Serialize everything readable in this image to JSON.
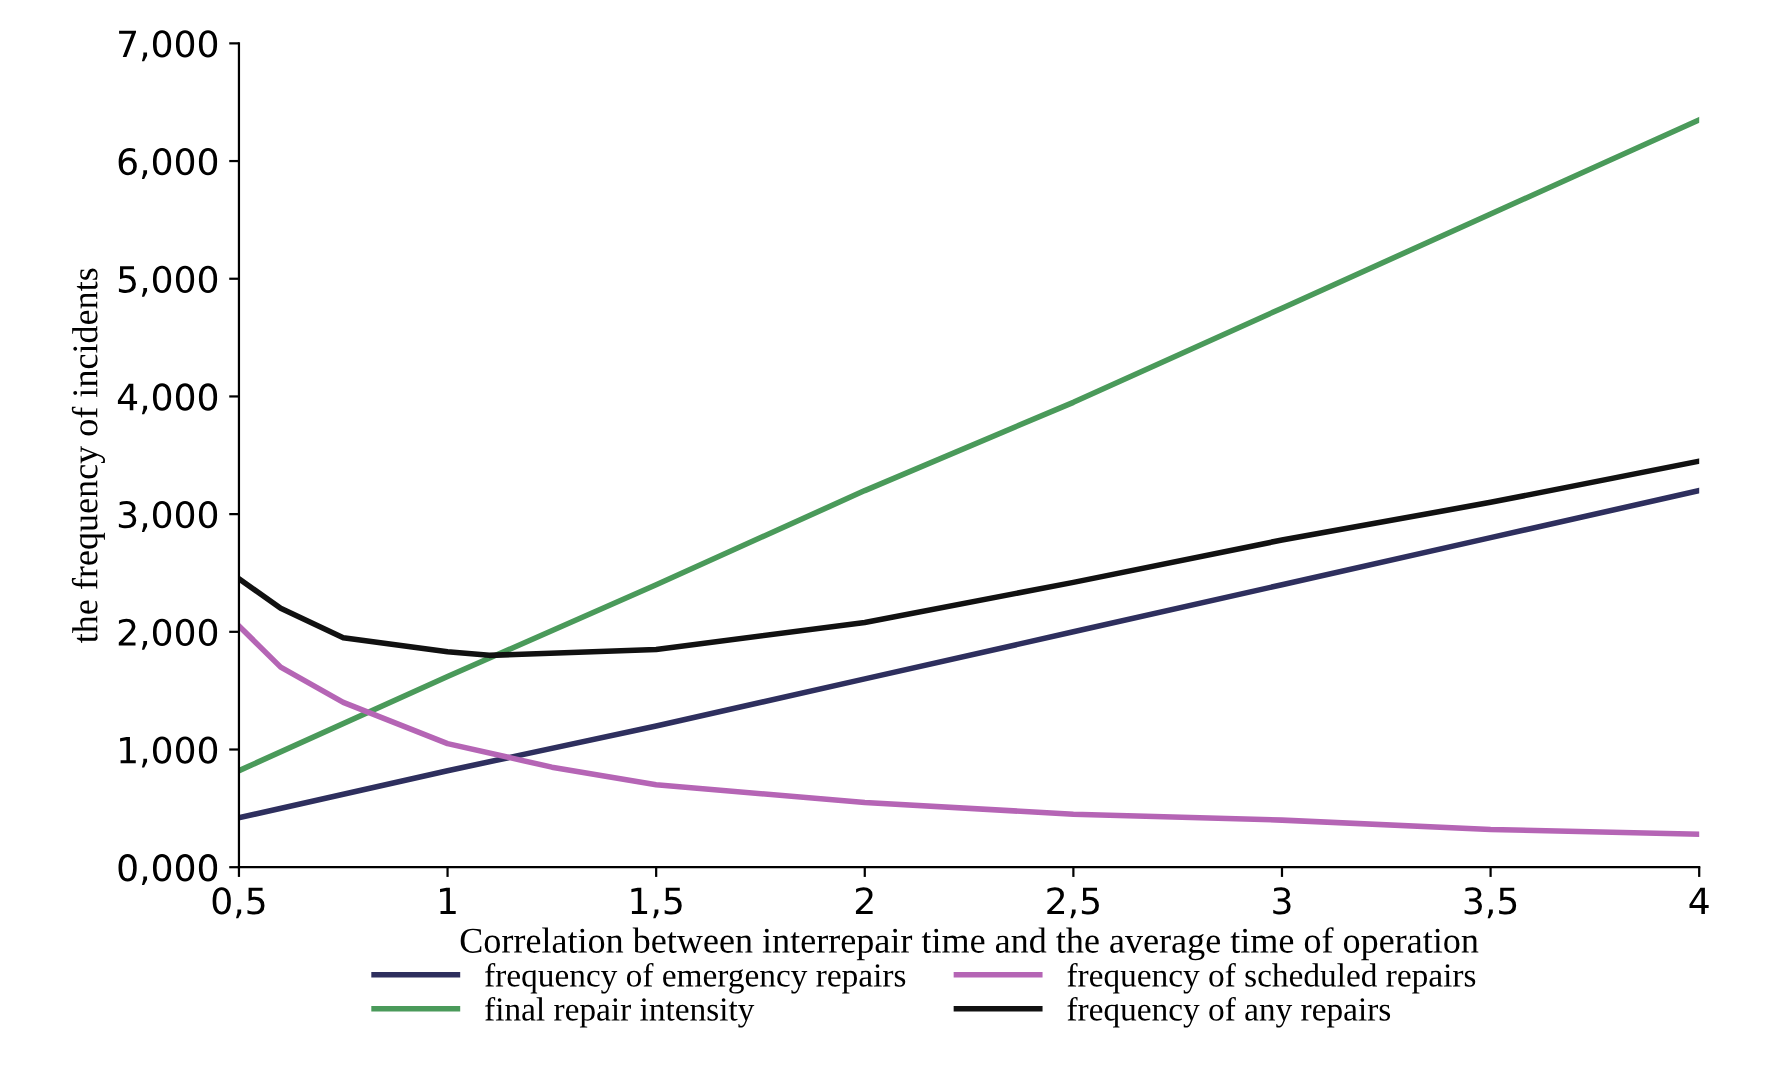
{
  "chart_data": {
    "type": "line",
    "xlabel": "Correlation between interrepair time and the average time of operation",
    "ylabel": "the frequency of incidents",
    "xlim": [
      0.5,
      4
    ],
    "xticks": [
      {
        "value": 0.5,
        "label": "0,5"
      },
      1,
      {
        "value": 1.5,
        "label": "1,5"
      },
      2,
      {
        "value": 2.5,
        "label": "2,5"
      },
      3,
      {
        "value": 3.5,
        "label": "3,5"
      },
      4
    ],
    "ylim": [
      0,
      7
    ],
    "yticks": [
      {
        "value": 0,
        "label": "0,000"
      },
      {
        "value": 1,
        "label": "1,000"
      },
      {
        "value": 2,
        "label": "2,000"
      },
      {
        "value": 3,
        "label": "3,000"
      },
      {
        "value": 4,
        "label": "4,000"
      },
      {
        "value": 5,
        "label": "5,000"
      },
      {
        "value": 6,
        "label": "6,000"
      },
      {
        "value": 7,
        "label": "7,000"
      }
    ],
    "grid": false,
    "legend": "bottom",
    "marker": "none",
    "line_style": "solid",
    "series": [
      {
        "name": "frequency of emergency repairs",
        "color": "#2e2f5e",
        "x": [
          0.5,
          1,
          1.5,
          2,
          2.5,
          3,
          3.5,
          4
        ],
        "values": [
          0.42,
          0.82,
          1.2,
          1.6,
          2.0,
          2.4,
          2.8,
          3.2
        ]
      },
      {
        "name": "final repair intensity",
        "color": "#4a9a5a",
        "x": [
          0.5,
          1,
          1.5,
          2,
          2.5,
          3,
          3.5,
          4
        ],
        "values": [
          0.82,
          1.62,
          2.4,
          3.2,
          3.95,
          4.75,
          5.55,
          6.35
        ]
      },
      {
        "name": "frequency of scheduled repairs",
        "color": "#b565b5",
        "x": [
          0.5,
          0.6,
          0.75,
          1,
          1.25,
          1.5,
          2,
          2.5,
          3,
          3.5,
          4
        ],
        "values": [
          2.05,
          1.7,
          1.4,
          1.05,
          0.85,
          0.7,
          0.55,
          0.45,
          0.4,
          0.32,
          0.28
        ]
      },
      {
        "name": "frequency of any repairs",
        "color": "#111111",
        "x": [
          0.5,
          0.6,
          0.75,
          1,
          1.1,
          1.5,
          2,
          2.5,
          3,
          3.5,
          4
        ],
        "values": [
          2.45,
          2.2,
          1.95,
          1.83,
          1.8,
          1.85,
          2.08,
          2.42,
          2.78,
          3.1,
          3.45
        ]
      }
    ]
  }
}
